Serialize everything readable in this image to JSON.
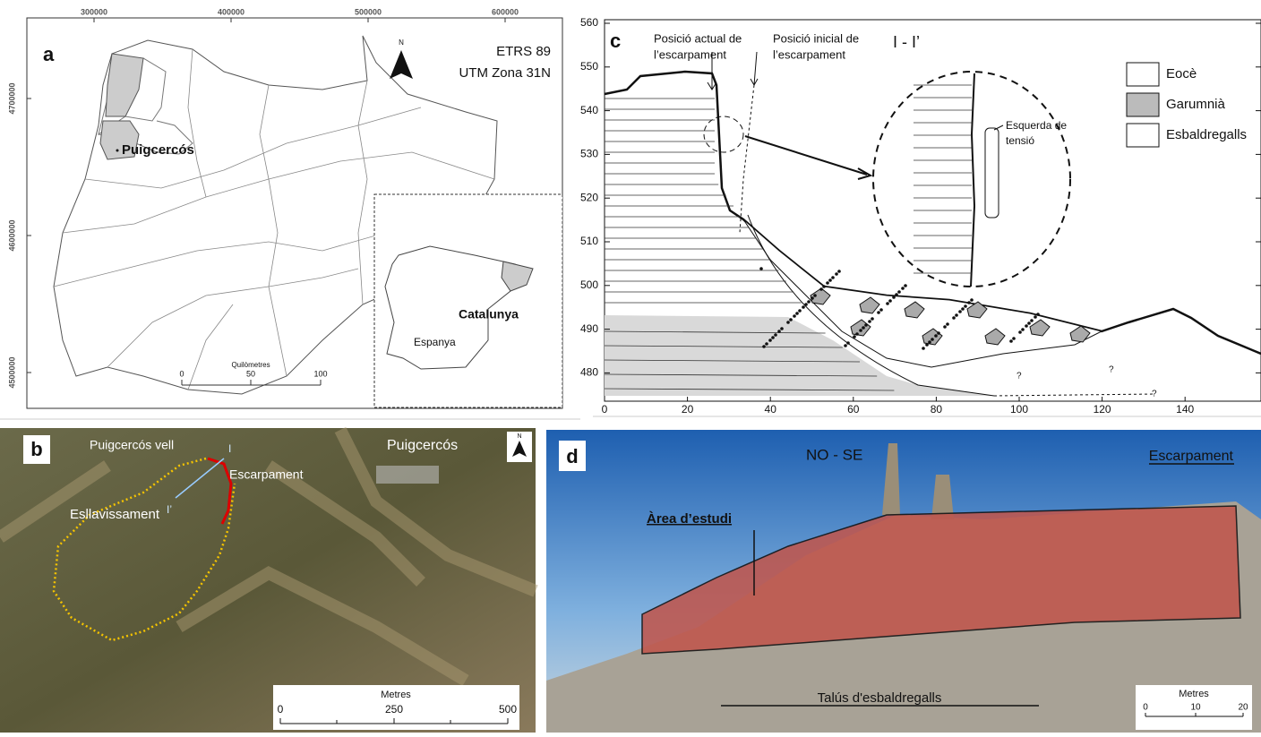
{
  "panel_a": {
    "label": "a",
    "x_ticks": [
      300000,
      400000,
      500000,
      600000
    ],
    "y_ticks": [
      4700000,
      4600000,
      4500000
    ],
    "crs": [
      "ETRS 89",
      "UTM Zona 31N"
    ],
    "north": "N",
    "municipality": "Puigcercós",
    "inset": {
      "region": "Catalunya",
      "country": "Espanya"
    },
    "scale_bar": {
      "title": "Quilòmetres",
      "ticks": [
        0,
        50,
        100
      ]
    }
  },
  "panel_b": {
    "label": "b",
    "old_town": "Puigcercós vell",
    "scarp": "Escarpament",
    "town": "Puigcercós",
    "landslide": "Esllavissament",
    "section_start": "I",
    "section_end": "I’",
    "north": "N",
    "scale_bar": {
      "title": "Metres",
      "ticks": [
        0,
        250,
        500
      ]
    }
  },
  "panel_c": {
    "label": "c",
    "section": "I - I’",
    "current_scarp": [
      "Posició actual de",
      "l’escarpament"
    ],
    "initial_scarp": [
      "Posició inicial de",
      "l’escarpament"
    ],
    "crack": [
      "Esquerda de",
      "tensió"
    ],
    "legend": [
      "Eocè",
      "Garumnià",
      "Esbaldregalls"
    ],
    "uncertain": [
      "?",
      "?",
      "?"
    ],
    "x_ticks": [
      0,
      20,
      40,
      60,
      80,
      100,
      120,
      140
    ],
    "y_ticks": [
      480,
      490,
      500,
      510,
      520,
      530,
      540,
      550,
      560
    ]
  },
  "panel_d": {
    "label": "d",
    "orientation": "NO - SE",
    "scarp": "Escarpament",
    "study_area": "Àrea d’estudi",
    "scree": "Talús d'esbaldregalls",
    "scale_bar": {
      "title": "Metres",
      "ticks": [
        0,
        10,
        20
      ]
    }
  }
}
